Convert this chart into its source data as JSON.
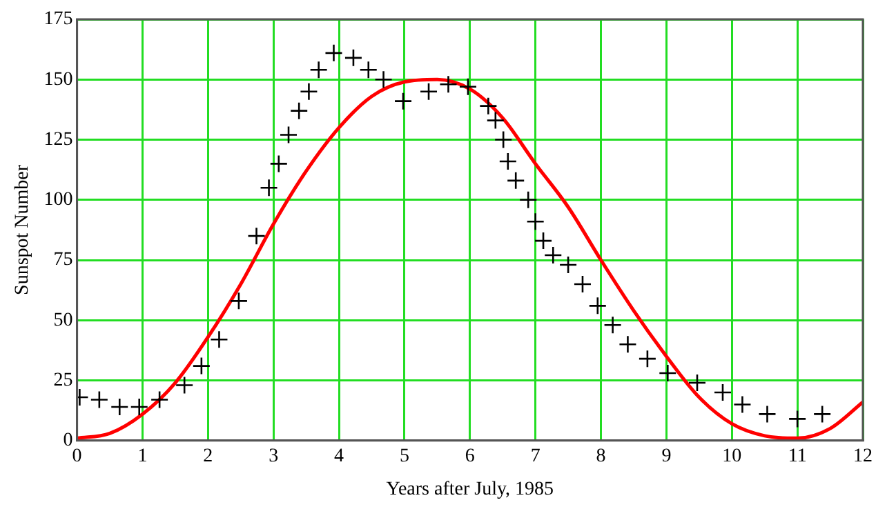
{
  "chart_data": {
    "type": "scatter",
    "xlabel": "Years after July, 1985",
    "ylabel": "Sunspot Number",
    "xlim": [
      0,
      12
    ],
    "xticks": [
      0,
      1,
      2,
      3,
      4,
      5,
      6,
      7,
      8,
      9,
      10,
      11,
      12
    ],
    "ylim": [
      0,
      175
    ],
    "yticks": [
      0,
      25,
      50,
      75,
      100,
      125,
      150,
      175
    ],
    "grid": true,
    "legend": false,
    "series": [
      {
        "marker": "cross",
        "color": "#000000",
        "x": [
          0.04,
          0.34,
          0.65,
          0.95,
          1.26,
          1.64,
          1.9,
          2.17,
          2.47,
          2.74,
          2.93,
          3.08,
          3.23,
          3.39,
          3.54,
          3.69,
          3.92,
          4.22,
          4.45,
          4.68,
          4.98,
          5.37,
          5.67,
          5.97,
          6.28,
          6.39,
          6.51,
          6.58,
          6.7,
          6.89,
          7.0,
          7.12,
          7.27,
          7.5,
          7.72,
          7.95,
          8.18,
          8.41,
          8.71,
          9.02,
          9.47,
          9.86,
          10.16,
          10.54,
          11.0,
          11.38
        ],
        "values": [
          18,
          17,
          14,
          14,
          17,
          23,
          31,
          42,
          58,
          85,
          105,
          115,
          127,
          137,
          145,
          154,
          161,
          159,
          154,
          150,
          141,
          145,
          148,
          147,
          139,
          133,
          125,
          116,
          108,
          100,
          91,
          83,
          77,
          73,
          65,
          56,
          48,
          40,
          34,
          28,
          24,
          20,
          15,
          11,
          9,
          11
        ]
      },
      {
        "type": "line",
        "marker": "none",
        "line_style": "solid",
        "color": "#ff0000",
        "x": [
          0,
          0.5,
          1,
          1.5,
          2,
          2.5,
          3,
          3.5,
          4,
          4.5,
          5,
          5.5,
          6,
          6.5,
          7,
          7.5,
          8,
          8.5,
          9,
          9.5,
          10,
          10.5,
          11,
          11.5,
          12
        ],
        "values": [
          1,
          3,
          11,
          24,
          43,
          65,
          90,
          112,
          130,
          143,
          149,
          150,
          146,
          134,
          115,
          97,
          75,
          54,
          35,
          18,
          7,
          2,
          1,
          5,
          16
        ]
      }
    ]
  }
}
